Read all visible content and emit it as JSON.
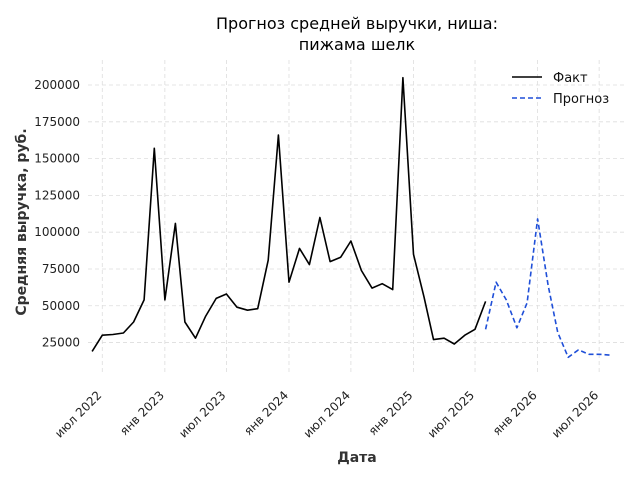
{
  "chart_data": {
    "type": "line",
    "title": "Прогноз средней выручки, ниша:",
    "subtitle": "пижама шелк",
    "xlabel": "Дата",
    "ylabel": "Средняя выручка, руб.",
    "ylim": [
      5000,
      217000
    ],
    "xlim": [
      "2022-05-20",
      "2026-09-15"
    ],
    "yticks": [
      25000,
      50000,
      75000,
      100000,
      125000,
      150000,
      175000,
      200000
    ],
    "xticks": [
      {
        "date": "2022-07-01",
        "label": "июл 2022"
      },
      {
        "date": "2023-01-01",
        "label": "янв 2023"
      },
      {
        "date": "2023-07-01",
        "label": "июл 2023"
      },
      {
        "date": "2024-01-01",
        "label": "янв 2024"
      },
      {
        "date": "2024-07-01",
        "label": "июл 2024"
      },
      {
        "date": "2025-01-01",
        "label": "янв 2025"
      },
      {
        "date": "2025-07-01",
        "label": "июл 2025"
      },
      {
        "date": "2026-01-01",
        "label": "янв 2026"
      },
      {
        "date": "2026-07-01",
        "label": "июл 2026"
      }
    ],
    "grid": true,
    "legend_position": "top-right",
    "series": [
      {
        "name": "Факт",
        "color": "#000000",
        "style": "solid",
        "x": [
          "2022-06-01",
          "2022-07-01",
          "2022-08-01",
          "2022-09-01",
          "2022-10-01",
          "2022-11-01",
          "2022-12-01",
          "2023-01-01",
          "2023-02-01",
          "2023-03-01",
          "2023-04-01",
          "2023-05-01",
          "2023-06-01",
          "2023-07-01",
          "2023-08-01",
          "2023-09-01",
          "2023-10-01",
          "2023-11-01",
          "2023-12-01",
          "2024-01-01",
          "2024-02-01",
          "2024-03-01",
          "2024-04-01",
          "2024-05-01",
          "2024-06-01",
          "2024-07-01",
          "2024-08-01",
          "2024-09-01",
          "2024-10-01",
          "2024-11-01",
          "2024-12-01",
          "2025-01-01",
          "2025-02-01",
          "2025-03-01",
          "2025-04-01",
          "2025-05-01",
          "2025-06-01",
          "2025-07-01",
          "2025-08-01"
        ],
        "values": [
          19000,
          30000,
          30500,
          31500,
          39000,
          54000,
          157000,
          54000,
          106000,
          39000,
          28000,
          43000,
          55000,
          58000,
          49000,
          47000,
          48000,
          81000,
          166000,
          66000,
          89000,
          78000,
          110000,
          80000,
          83000,
          94000,
          74000,
          62000,
          65000,
          61000,
          205000,
          85000,
          56000,
          27000,
          28000,
          24000,
          30000,
          34000,
          53000
        ]
      },
      {
        "name": "Прогноз",
        "color": "#1f4fd8",
        "style": "dashed",
        "x": [
          "2025-08-01",
          "2025-09-01",
          "2025-10-01",
          "2025-11-01",
          "2025-12-01",
          "2026-01-01",
          "2026-02-01",
          "2026-03-01",
          "2026-04-01",
          "2026-05-01",
          "2026-06-01",
          "2026-07-01",
          "2026-08-01"
        ],
        "values": [
          34000,
          66000,
          54000,
          35000,
          52000,
          109000,
          64000,
          32000,
          15000,
          20000,
          17000,
          17000,
          16500
        ]
      }
    ]
  }
}
